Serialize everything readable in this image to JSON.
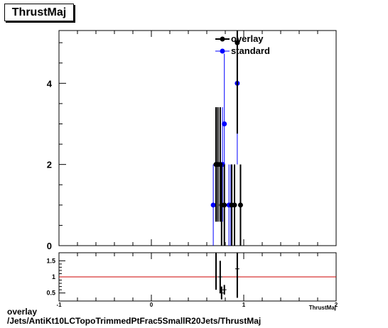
{
  "title": "ThrustMaj",
  "footer": {
    "line1": "overlay",
    "line2": "/Jets/AntiKt10LCTopoTrimmedPtFrac5SmallR20Jets/ThrustMaj"
  },
  "legend": {
    "entries": [
      {
        "name": "overlay",
        "color": "#000000"
      },
      {
        "name": "standard",
        "color": "#0000ff"
      }
    ]
  },
  "chart_data": [
    {
      "type": "scatter",
      "xlim": [
        -1,
        2
      ],
      "ylim": [
        0,
        5.3
      ],
      "xlabel": "",
      "ylabel": "",
      "y_tick_labels": [
        "0",
        "2",
        "4"
      ],
      "legend_position": "top-center",
      "series": [
        {
          "name": "overlay",
          "color": "#000000",
          "points": [
            {
              "x": 0.7,
              "y": 2,
              "err": 1.41
            },
            {
              "x": 0.72,
              "y": 2,
              "err": 1.41
            },
            {
              "x": 0.745,
              "y": 2,
              "err": 1.41
            },
            {
              "x": 0.76,
              "y": 1,
              "err": 1.0
            },
            {
              "x": 0.79,
              "y": 1,
              "err": 1.0
            },
            {
              "x": 0.87,
              "y": 1,
              "err": 1.0
            },
            {
              "x": 0.9,
              "y": 1,
              "err": 1.0
            },
            {
              "x": 0.93,
              "y": 5,
              "err": 2.24
            },
            {
              "x": 0.965,
              "y": 1,
              "err": 1.0
            }
          ]
        },
        {
          "name": "standard",
          "color": "#0000ff",
          "points": [
            {
              "x": 0.67,
              "y": 1,
              "err": 1.0
            },
            {
              "x": 0.77,
              "y": 2,
              "err": 1.41
            },
            {
              "x": 0.79,
              "y": 3,
              "err": 1.73
            },
            {
              "x": 0.84,
              "y": 1,
              "err": 1.0
            },
            {
              "x": 0.86,
              "y": 1,
              "err": 1.0
            },
            {
              "x": 0.93,
              "y": 4,
              "err": 2.0
            }
          ]
        }
      ]
    },
    {
      "type": "scatter",
      "xlim": [
        -1,
        2
      ],
      "ylim": [
        0.25,
        1.75
      ],
      "x_tick_labels": [
        "-1",
        "0",
        "1",
        "2"
      ],
      "y_tick_labels": [
        "0.5",
        "1",
        "1.5"
      ],
      "xlabel": "ThrustMaj",
      "reference_line": {
        "y": 1,
        "color": "#cc0000"
      },
      "series": [
        {
          "name": "ratio",
          "color": "#000000",
          "points": [
            {
              "x": 0.7,
              "y": 2.0,
              "err": 1.4
            },
            {
              "x": 0.745,
              "y": 1.0,
              "err": 0.5
            },
            {
              "x": 0.76,
              "y": 0.5,
              "err": 0.2
            },
            {
              "x": 0.79,
              "y": 0.6,
              "err": 0.15
            },
            {
              "x": 0.93,
              "y": 1.25,
              "err": 0.9
            }
          ]
        }
      ]
    }
  ]
}
